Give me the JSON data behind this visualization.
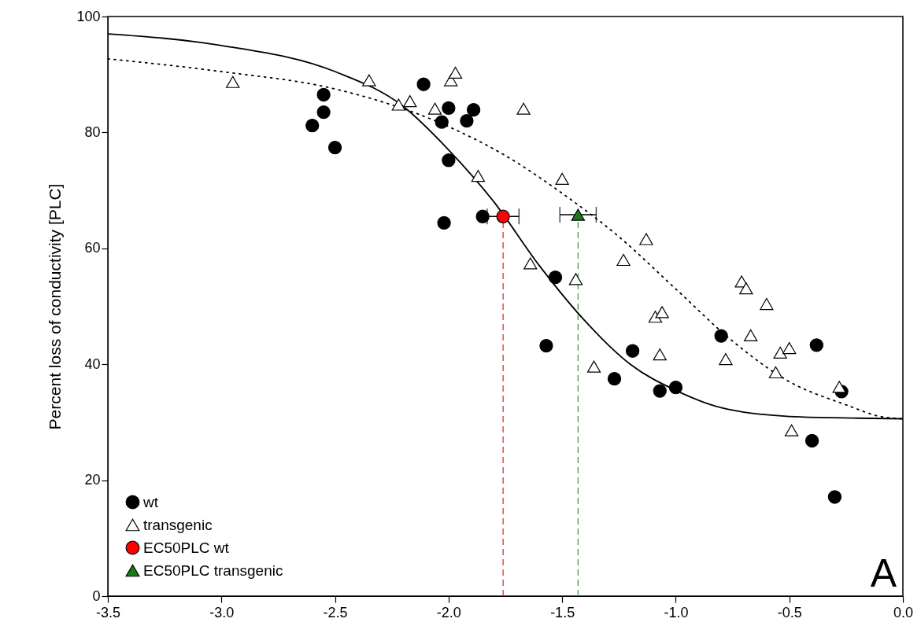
{
  "chart_data": {
    "type": "scatter",
    "ylabel": "Percent loss of conductivity [PLC]",
    "xlim": [
      -3.5,
      0
    ],
    "ylim": [
      0,
      100
    ],
    "xticks": [
      {
        "value": -3.5,
        "label": "-3.5"
      },
      {
        "value": -3,
        "label": "-3.0"
      },
      {
        "value": -2.5,
        "label": "-2.5"
      },
      {
        "value": -2,
        "label": "-2.0"
      },
      {
        "value": -1.5,
        "label": "-1.5"
      },
      {
        "value": -1,
        "label": "-1.0"
      },
      {
        "value": -0.5,
        "label": "-0.5"
      },
      {
        "value": 0,
        "label": "0.0"
      }
    ],
    "yticks": [
      0,
      20,
      40,
      60,
      80,
      100
    ],
    "grid": false,
    "legend": "bottom left",
    "annotations": [
      "A"
    ],
    "series": [
      {
        "name": "wt",
        "marker": "circle",
        "color": "#000000",
        "x": [
          -2.6,
          -2.55,
          -2.55,
          -2.5,
          -2.11,
          -2.03,
          -2.0,
          -1.92,
          -1.89,
          -2.0,
          -2.02,
          -1.85,
          -1.53,
          -1.57,
          -1.27,
          -1.19,
          -1.07,
          -1.0,
          -0.8,
          -0.38,
          -0.4,
          -0.3,
          -0.27
        ],
        "values": [
          81.2,
          86.5,
          83.5,
          77.4,
          88.3,
          81.8,
          84.2,
          82,
          83.9,
          75.2,
          64.4,
          65.5,
          55,
          43.2,
          37.5,
          42.3,
          35.4,
          36,
          44.9,
          43.3,
          26.8,
          17.1,
          35.3
        ]
      },
      {
        "name": "transgenic",
        "marker": "triangle",
        "color": "#ffffff",
        "x": [
          -2.95,
          -2.35,
          -2.22,
          -2.17,
          -2.06,
          -1.99,
          -1.97,
          -1.67,
          -1.87,
          -1.5,
          -1.64,
          -1.44,
          -1.36,
          -1.23,
          -1.13,
          -1.09,
          -1.06,
          -1.07,
          -0.71,
          -0.69,
          -0.67,
          -0.6,
          -0.78,
          -0.56,
          -0.54,
          -0.5,
          -0.49,
          -0.28
        ],
        "values": [
          88.7,
          89,
          84.8,
          85.4,
          84.1,
          89,
          90.3,
          84.1,
          72.5,
          72,
          57.4,
          54.7,
          39.6,
          58,
          61.6,
          48.2,
          49,
          41.7,
          54.3,
          53.1,
          45,
          50.4,
          40.9,
          38.6,
          42,
          42.8,
          28.6,
          36.1
        ]
      },
      {
        "type": "line",
        "line_style": "solid",
        "color": "#000000",
        "x": [
          -3.5,
          -3.0,
          -2.5,
          -2.2,
          -2.0,
          -1.8,
          -1.6,
          -1.4,
          -1.2,
          -1.0,
          -0.8,
          -0.5,
          -0.2,
          0
        ],
        "values": [
          97,
          95,
          90.5,
          84.5,
          77,
          68,
          57,
          47.5,
          40,
          35.5,
          32.5,
          31,
          30.7,
          30.6
        ]
      },
      {
        "type": "line",
        "line_style": "dotted",
        "color": "#000000",
        "x": [
          -3.5,
          -3.0,
          -2.5,
          -2.0,
          -1.75,
          -1.5,
          -1.25,
          -1.0,
          -0.75,
          -0.5,
          -0.25,
          -0.1,
          0
        ],
        "values": [
          92.7,
          90.5,
          87.5,
          81,
          76,
          69.5,
          62,
          53,
          44,
          37,
          33,
          31,
          30.6
        ]
      },
      {
        "name": "EC50PLC wt",
        "marker": "circle",
        "color": "#ff0000",
        "x": [
          -1.76
        ],
        "values": [
          65.5
        ],
        "xerrors": [
          0.07
        ]
      },
      {
        "name": "EC50PLC transgenic",
        "marker": "triangle",
        "color": "#1a7a1a",
        "x": [
          -1.43
        ],
        "values": [
          65.8
        ],
        "xerrors": [
          0.08
        ]
      }
    ],
    "ref_lines": [
      {
        "axis": "x",
        "value": -1.76,
        "color": "#e03030",
        "line_style": "dashed"
      },
      {
        "axis": "x",
        "value": -1.43,
        "color": "#40a040",
        "line_style": "dashed"
      }
    ]
  }
}
